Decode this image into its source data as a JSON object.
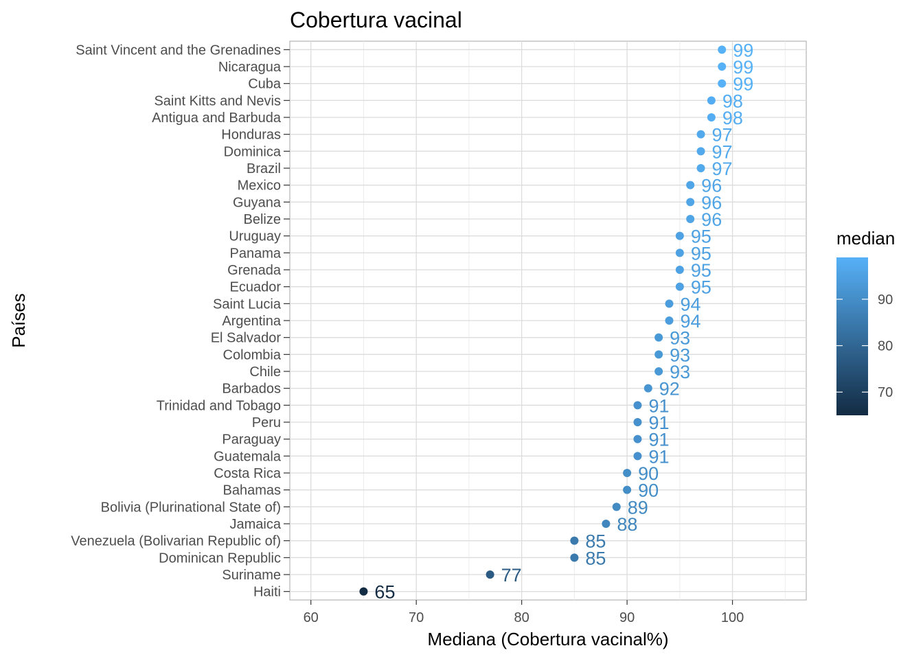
{
  "chart_data": {
    "type": "scatter",
    "title": "Cobertura vacinal",
    "xlabel": "Mediana (Cobertura vacinal%)",
    "ylabel": "Países",
    "xlim": [
      58,
      107
    ],
    "xticks": [
      60,
      70,
      80,
      90,
      100
    ],
    "grid": true,
    "categories": [
      "Saint Vincent and the Grenadines",
      "Nicaragua",
      "Cuba",
      "Saint Kitts and Nevis",
      "Antigua and Barbuda",
      "Honduras",
      "Dominica",
      "Brazil",
      "Mexico",
      "Guyana",
      "Belize",
      "Uruguay",
      "Panama",
      "Grenada",
      "Ecuador",
      "Saint Lucia",
      "Argentina",
      "El Salvador",
      "Colombia",
      "Chile",
      "Barbados",
      "Trinidad and Tobago",
      "Peru",
      "Paraguay",
      "Guatemala",
      "Costa Rica",
      "Bahamas",
      "Bolivia (Plurinational State of)",
      "Jamaica",
      "Venezuela (Bolivarian Republic of)",
      "Dominican Republic",
      "Suriname",
      "Haiti"
    ],
    "values": [
      99,
      99,
      99,
      98,
      98,
      97,
      97,
      97,
      96,
      96,
      96,
      95,
      95,
      95,
      95,
      94,
      94,
      93,
      93,
      93,
      92,
      91,
      91,
      91,
      91,
      90,
      90,
      89,
      88,
      85,
      85,
      77,
      65
    ],
    "legend": {
      "title": "median",
      "position": "right",
      "ticks": [
        70,
        80,
        90
      ],
      "range": [
        65,
        99
      ],
      "color_low": "#132b43",
      "color_high": "#56b1f7"
    }
  }
}
